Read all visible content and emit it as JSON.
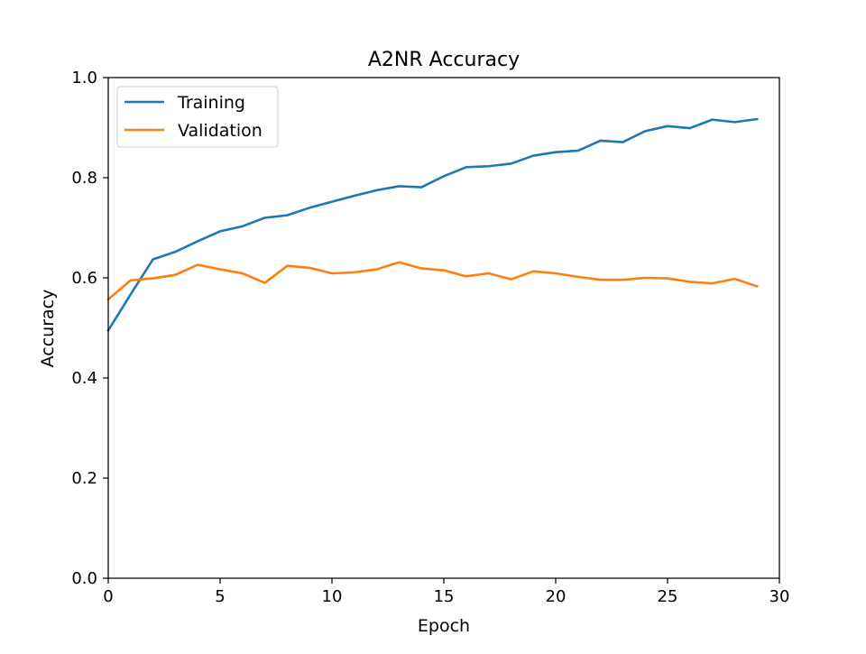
{
  "chart_data": {
    "type": "line",
    "title": "A2NR Accuracy",
    "xlabel": "Epoch",
    "ylabel": "Accuracy",
    "xlim": [
      0,
      30
    ],
    "ylim": [
      0,
      1.0
    ],
    "x_ticks": [
      "0",
      "5",
      "10",
      "15",
      "20",
      "25",
      "30"
    ],
    "y_ticks": [
      "0.0",
      "0.2",
      "0.4",
      "0.6",
      "0.8",
      "1.0"
    ],
    "grid": false,
    "legend_position": "upper-left",
    "x": [
      0,
      1,
      2,
      3,
      4,
      5,
      6,
      7,
      8,
      9,
      10,
      11,
      12,
      13,
      14,
      15,
      16,
      17,
      18,
      19,
      20,
      21,
      22,
      23,
      24,
      25,
      26,
      27,
      28,
      29
    ],
    "series": [
      {
        "name": "Training",
        "color": "#1f77b4",
        "values": [
          0.495,
          0.567,
          0.637,
          0.652,
          0.673,
          0.693,
          0.703,
          0.72,
          0.725,
          0.74,
          0.752,
          0.764,
          0.775,
          0.783,
          0.781,
          0.803,
          0.821,
          0.823,
          0.828,
          0.844,
          0.851,
          0.854,
          0.874,
          0.871,
          0.893,
          0.903,
          0.899,
          0.916,
          0.911,
          0.917
        ]
      },
      {
        "name": "Validation",
        "color": "#ff7f0e",
        "values": [
          0.557,
          0.595,
          0.599,
          0.606,
          0.626,
          0.617,
          0.609,
          0.59,
          0.624,
          0.62,
          0.609,
          0.611,
          0.617,
          0.631,
          0.619,
          0.615,
          0.603,
          0.609,
          0.597,
          0.613,
          0.609,
          0.602,
          0.596,
          0.596,
          0.6,
          0.599,
          0.592,
          0.589,
          0.598,
          0.583
        ]
      }
    ]
  }
}
